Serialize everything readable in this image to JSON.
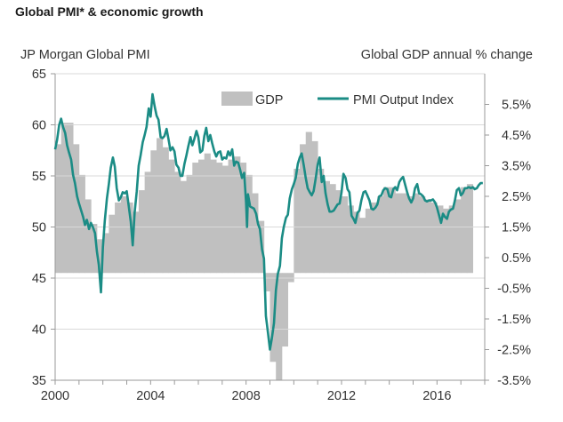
{
  "header": {
    "title": "Global PMI* & economic growth"
  },
  "chart_data": {
    "type": "bar+line",
    "title": "Global PMI* & economic growth",
    "left_axis": {
      "label": "JP Morgan Global PMI",
      "range": [
        35,
        65
      ],
      "ticks": [
        "65",
        "60",
        "55",
        "50",
        "45",
        "40",
        "35"
      ]
    },
    "right_axis": {
      "label": "Global GDP annual % change",
      "range": [
        -3.5,
        6.5
      ],
      "ticks": [
        "5.5%",
        "4.5%",
        "3.5%",
        "2.5%",
        "1.5%",
        "0.5%",
        "-0.5%",
        "-1.5%",
        "-2.5%",
        "-3.5%"
      ]
    },
    "x_axis": {
      "range": [
        2000,
        2018
      ],
      "ticks": [
        "2000",
        "2004",
        "2008",
        "2012",
        "2016"
      ]
    },
    "legend": [
      {
        "name": "GDP",
        "color": "#c0c0c0"
      },
      {
        "name": "PMI Output Index",
        "color": "#1b8c85"
      }
    ],
    "colors": {
      "gdp": "#c0c0c0",
      "pmi": "#1b8c85",
      "axis": "#9a9a9a"
    },
    "series": [
      {
        "name": "GDP",
        "axis": "right",
        "points": [
          [
            2000.0,
            4.2
          ],
          [
            2000.25,
            4.9
          ],
          [
            2000.5,
            4.9
          ],
          [
            2000.75,
            4.2
          ],
          [
            2001.0,
            3.2
          ],
          [
            2001.25,
            2.4
          ],
          [
            2001.5,
            1.6
          ],
          [
            2001.75,
            1.1
          ],
          [
            2002.0,
            1.3
          ],
          [
            2002.25,
            1.9
          ],
          [
            2002.5,
            2.3
          ],
          [
            2002.75,
            2.5
          ],
          [
            2003.0,
            2.3
          ],
          [
            2003.25,
            2.0
          ],
          [
            2003.5,
            2.7
          ],
          [
            2003.75,
            3.3
          ],
          [
            2004.0,
            4.0
          ],
          [
            2004.25,
            4.4
          ],
          [
            2004.5,
            4.1
          ],
          [
            2004.75,
            3.7
          ],
          [
            2005.0,
            3.3
          ],
          [
            2005.25,
            3.0
          ],
          [
            2005.5,
            3.2
          ],
          [
            2005.75,
            3.6
          ],
          [
            2006.0,
            3.7
          ],
          [
            2006.25,
            3.9
          ],
          [
            2006.5,
            3.7
          ],
          [
            2006.75,
            3.6
          ],
          [
            2007.0,
            3.5
          ],
          [
            2007.25,
            3.7
          ],
          [
            2007.5,
            3.8
          ],
          [
            2007.75,
            3.6
          ],
          [
            2008.0,
            3.2
          ],
          [
            2008.25,
            2.6
          ],
          [
            2008.5,
            1.7
          ],
          [
            2008.75,
            -0.6
          ],
          [
            2009.0,
            -2.9
          ],
          [
            2009.25,
            -3.5
          ],
          [
            2009.5,
            -2.4
          ],
          [
            2009.75,
            -0.3
          ],
          [
            2010.0,
            3.4
          ],
          [
            2010.25,
            4.2
          ],
          [
            2010.5,
            4.6
          ],
          [
            2010.75,
            4.3
          ],
          [
            2011.0,
            3.4
          ],
          [
            2011.25,
            3.0
          ],
          [
            2011.5,
            2.9
          ],
          [
            2011.75,
            2.7
          ],
          [
            2012.0,
            2.5
          ],
          [
            2012.25,
            2.2
          ],
          [
            2012.5,
            2.0
          ],
          [
            2012.75,
            1.8
          ],
          [
            2013.0,
            2.1
          ],
          [
            2013.25,
            2.3
          ],
          [
            2013.5,
            2.5
          ],
          [
            2013.75,
            2.8
          ],
          [
            2014.0,
            2.8
          ],
          [
            2014.25,
            2.6
          ],
          [
            2014.5,
            2.6
          ],
          [
            2014.75,
            2.5
          ],
          [
            2015.0,
            2.6
          ],
          [
            2015.25,
            2.5
          ],
          [
            2015.5,
            2.4
          ],
          [
            2015.75,
            2.3
          ],
          [
            2016.0,
            2.2
          ],
          [
            2016.25,
            2.1
          ],
          [
            2016.5,
            2.2
          ],
          [
            2016.75,
            2.4
          ],
          [
            2017.0,
            2.8
          ],
          [
            2017.25,
            2.9
          ]
        ]
      },
      {
        "name": "PMI Output Index",
        "axis": "left",
        "points": [
          [
            2000.0,
            57.6
          ],
          [
            2000.08,
            58.5
          ],
          [
            2000.17,
            60.0
          ],
          [
            2000.25,
            60.6
          ],
          [
            2000.33,
            59.8
          ],
          [
            2000.42,
            59.2
          ],
          [
            2000.5,
            58.0
          ],
          [
            2000.58,
            57.3
          ],
          [
            2000.67,
            56.6
          ],
          [
            2000.75,
            55.1
          ],
          [
            2000.83,
            54.3
          ],
          [
            2000.92,
            53.0
          ],
          [
            2001.0,
            52.3
          ],
          [
            2001.08,
            51.7
          ],
          [
            2001.17,
            51.0
          ],
          [
            2001.25,
            50.2
          ],
          [
            2001.33,
            50.7
          ],
          [
            2001.42,
            49.8
          ],
          [
            2001.5,
            50.4
          ],
          [
            2001.58,
            50.0
          ],
          [
            2001.67,
            49.4
          ],
          [
            2001.75,
            47.6
          ],
          [
            2001.83,
            46.3
          ],
          [
            2001.92,
            43.6
          ],
          [
            2002.0,
            48.0
          ],
          [
            2002.08,
            50.6
          ],
          [
            2002.17,
            52.8
          ],
          [
            2002.25,
            54.2
          ],
          [
            2002.33,
            55.8
          ],
          [
            2002.42,
            56.8
          ],
          [
            2002.5,
            55.9
          ],
          [
            2002.58,
            53.8
          ],
          [
            2002.67,
            52.6
          ],
          [
            2002.75,
            52.9
          ],
          [
            2002.83,
            53.4
          ],
          [
            2002.92,
            53.3
          ],
          [
            2003.0,
            53.5
          ],
          [
            2003.08,
            52.1
          ],
          [
            2003.17,
            50.5
          ],
          [
            2003.25,
            48.2
          ],
          [
            2003.33,
            51.4
          ],
          [
            2003.42,
            53.5
          ],
          [
            2003.5,
            56.0
          ],
          [
            2003.58,
            57.0
          ],
          [
            2003.67,
            58.3
          ],
          [
            2003.75,
            59.0
          ],
          [
            2003.83,
            59.8
          ],
          [
            2003.92,
            61.6
          ],
          [
            2004.0,
            60.8
          ],
          [
            2004.08,
            63.0
          ],
          [
            2004.17,
            61.8
          ],
          [
            2004.25,
            60.9
          ],
          [
            2004.33,
            60.5
          ],
          [
            2004.42,
            58.8
          ],
          [
            2004.5,
            58.7
          ],
          [
            2004.58,
            58.9
          ],
          [
            2004.67,
            59.6
          ],
          [
            2004.75,
            58.6
          ],
          [
            2004.83,
            57.5
          ],
          [
            2004.92,
            57.8
          ],
          [
            2005.0,
            57.4
          ],
          [
            2005.08,
            56.1
          ],
          [
            2005.17,
            55.8
          ],
          [
            2005.25,
            55.0
          ],
          [
            2005.33,
            55.0
          ],
          [
            2005.42,
            56.2
          ],
          [
            2005.5,
            57.0
          ],
          [
            2005.58,
            57.9
          ],
          [
            2005.67,
            58.8
          ],
          [
            2005.75,
            58.0
          ],
          [
            2005.83,
            58.6
          ],
          [
            2005.92,
            59.4
          ],
          [
            2006.0,
            58.8
          ],
          [
            2006.08,
            57.3
          ],
          [
            2006.17,
            57.5
          ],
          [
            2006.25,
            58.9
          ],
          [
            2006.33,
            59.7
          ],
          [
            2006.42,
            58.4
          ],
          [
            2006.5,
            59.0
          ],
          [
            2006.58,
            58.2
          ],
          [
            2006.67,
            57.4
          ],
          [
            2006.75,
            56.9
          ],
          [
            2006.83,
            57.3
          ],
          [
            2006.92,
            57.4
          ],
          [
            2007.0,
            56.6
          ],
          [
            2007.08,
            56.8
          ],
          [
            2007.17,
            56.7
          ],
          [
            2007.25,
            57.4
          ],
          [
            2007.33,
            57.0
          ],
          [
            2007.42,
            57.6
          ],
          [
            2007.5,
            56.0
          ],
          [
            2007.58,
            56.4
          ],
          [
            2007.67,
            56.3
          ],
          [
            2007.75,
            55.6
          ],
          [
            2007.83,
            54.8
          ],
          [
            2007.92,
            55.3
          ],
          [
            2008.0,
            52.4
          ],
          [
            2008.04,
            50.0
          ],
          [
            2008.08,
            53.2
          ],
          [
            2008.17,
            52.0
          ],
          [
            2008.25,
            51.9
          ],
          [
            2008.33,
            51.8
          ],
          [
            2008.42,
            51.3
          ],
          [
            2008.5,
            50.3
          ],
          [
            2008.58,
            49.8
          ],
          [
            2008.67,
            47.8
          ],
          [
            2008.75,
            46.9
          ],
          [
            2008.83,
            41.3
          ],
          [
            2008.92,
            39.6
          ],
          [
            2009.0,
            38.0
          ],
          [
            2009.08,
            39.1
          ],
          [
            2009.17,
            40.6
          ],
          [
            2009.25,
            43.8
          ],
          [
            2009.33,
            45.4
          ],
          [
            2009.42,
            46.2
          ],
          [
            2009.5,
            48.9
          ],
          [
            2009.58,
            50.0
          ],
          [
            2009.67,
            50.9
          ],
          [
            2009.75,
            51.2
          ],
          [
            2009.83,
            52.8
          ],
          [
            2009.92,
            53.7
          ],
          [
            2010.0,
            54.2
          ],
          [
            2010.08,
            54.8
          ],
          [
            2010.17,
            56.2
          ],
          [
            2010.25,
            56.8
          ],
          [
            2010.33,
            57.2
          ],
          [
            2010.42,
            56.0
          ],
          [
            2010.5,
            54.8
          ],
          [
            2010.58,
            53.8
          ],
          [
            2010.67,
            53.4
          ],
          [
            2010.75,
            53.1
          ],
          [
            2010.83,
            53.5
          ],
          [
            2010.92,
            54.8
          ],
          [
            2011.0,
            56.1
          ],
          [
            2011.08,
            56.8
          ],
          [
            2011.17,
            54.4
          ],
          [
            2011.25,
            55.0
          ],
          [
            2011.33,
            53.3
          ],
          [
            2011.42,
            52.2
          ],
          [
            2011.5,
            51.5
          ],
          [
            2011.58,
            51.5
          ],
          [
            2011.67,
            51.6
          ],
          [
            2011.75,
            51.9
          ],
          [
            2011.83,
            52.2
          ],
          [
            2011.92,
            52.3
          ],
          [
            2012.0,
            53.4
          ],
          [
            2012.08,
            55.2
          ],
          [
            2012.17,
            54.8
          ],
          [
            2012.25,
            53.7
          ],
          [
            2012.33,
            53.4
          ],
          [
            2012.42,
            51.1
          ],
          [
            2012.5,
            50.8
          ],
          [
            2012.58,
            50.4
          ],
          [
            2012.67,
            51.4
          ],
          [
            2012.75,
            51.6
          ],
          [
            2012.83,
            52.6
          ],
          [
            2012.92,
            53.4
          ],
          [
            2013.0,
            53.5
          ],
          [
            2013.08,
            53.1
          ],
          [
            2013.17,
            52.6
          ],
          [
            2013.25,
            51.8
          ],
          [
            2013.33,
            51.7
          ],
          [
            2013.42,
            51.9
          ],
          [
            2013.5,
            52.2
          ],
          [
            2013.58,
            53.0
          ],
          [
            2013.67,
            53.1
          ],
          [
            2013.75,
            53.6
          ],
          [
            2013.83,
            53.8
          ],
          [
            2013.92,
            53.7
          ],
          [
            2014.0,
            53.0
          ],
          [
            2014.08,
            52.9
          ],
          [
            2014.17,
            53.7
          ],
          [
            2014.25,
            53.9
          ],
          [
            2014.33,
            53.6
          ],
          [
            2014.42,
            54.4
          ],
          [
            2014.5,
            54.7
          ],
          [
            2014.58,
            54.9
          ],
          [
            2014.67,
            54.1
          ],
          [
            2014.75,
            53.4
          ],
          [
            2014.83,
            52.8
          ],
          [
            2014.92,
            52.4
          ],
          [
            2015.0,
            52.8
          ],
          [
            2015.08,
            53.8
          ],
          [
            2015.17,
            54.2
          ],
          [
            2015.25,
            53.3
          ],
          [
            2015.33,
            53.2
          ],
          [
            2015.42,
            53.0
          ],
          [
            2015.5,
            52.6
          ],
          [
            2015.58,
            52.5
          ],
          [
            2015.67,
            52.6
          ],
          [
            2015.75,
            52.6
          ],
          [
            2015.83,
            52.7
          ],
          [
            2015.92,
            52.4
          ],
          [
            2016.0,
            51.9
          ],
          [
            2016.08,
            51.2
          ],
          [
            2016.17,
            50.4
          ],
          [
            2016.25,
            51.3
          ],
          [
            2016.33,
            51.0
          ],
          [
            2016.42,
            50.8
          ],
          [
            2016.5,
            51.5
          ],
          [
            2016.58,
            51.7
          ],
          [
            2016.67,
            51.8
          ],
          [
            2016.75,
            52.6
          ],
          [
            2016.83,
            53.6
          ],
          [
            2016.92,
            53.8
          ],
          [
            2017.0,
            53.1
          ],
          [
            2017.08,
            53.3
          ],
          [
            2017.17,
            53.8
          ],
          [
            2017.25,
            53.8
          ],
          [
            2017.33,
            53.9
          ],
          [
            2017.42,
            53.8
          ],
          [
            2017.5,
            53.9
          ],
          [
            2017.58,
            53.7
          ],
          [
            2017.67,
            53.8
          ],
          [
            2017.75,
            54.1
          ],
          [
            2017.83,
            54.3
          ],
          [
            2017.92,
            54.3
          ]
        ]
      }
    ]
  }
}
